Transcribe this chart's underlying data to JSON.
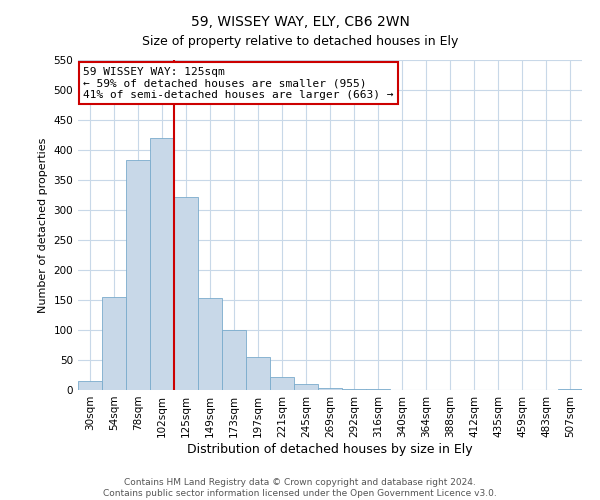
{
  "title": "59, WISSEY WAY, ELY, CB6 2WN",
  "subtitle": "Size of property relative to detached houses in Ely",
  "xlabel": "Distribution of detached houses by size in Ely",
  "ylabel": "Number of detached properties",
  "bin_labels": [
    "30sqm",
    "54sqm",
    "78sqm",
    "102sqm",
    "125sqm",
    "149sqm",
    "173sqm",
    "197sqm",
    "221sqm",
    "245sqm",
    "269sqm",
    "292sqm",
    "316sqm",
    "340sqm",
    "364sqm",
    "388sqm",
    "412sqm",
    "435sqm",
    "459sqm",
    "483sqm",
    "507sqm"
  ],
  "bar_heights": [
    15,
    155,
    383,
    420,
    322,
    153,
    100,
    55,
    22,
    10,
    3,
    1,
    1,
    0,
    0,
    0,
    0,
    0,
    0,
    0,
    2
  ],
  "bar_color": "#c8d8e8",
  "bar_edge_color": "#7aabcc",
  "marker_color": "#cc0000",
  "ylim": [
    0,
    550
  ],
  "yticks": [
    0,
    50,
    100,
    150,
    200,
    250,
    300,
    350,
    400,
    450,
    500,
    550
  ],
  "annotation_title": "59 WISSEY WAY: 125sqm",
  "annotation_line1": "← 59% of detached houses are smaller (955)",
  "annotation_line2": "41% of semi-detached houses are larger (663) →",
  "annotation_box_color": "#cc0000",
  "footer_line1": "Contains HM Land Registry data © Crown copyright and database right 2024.",
  "footer_line2": "Contains public sector information licensed under the Open Government Licence v3.0.",
  "title_fontsize": 10,
  "ylabel_fontsize": 8,
  "xlabel_fontsize": 9,
  "tick_fontsize": 7.5,
  "annotation_fontsize": 8,
  "footer_fontsize": 6.5
}
